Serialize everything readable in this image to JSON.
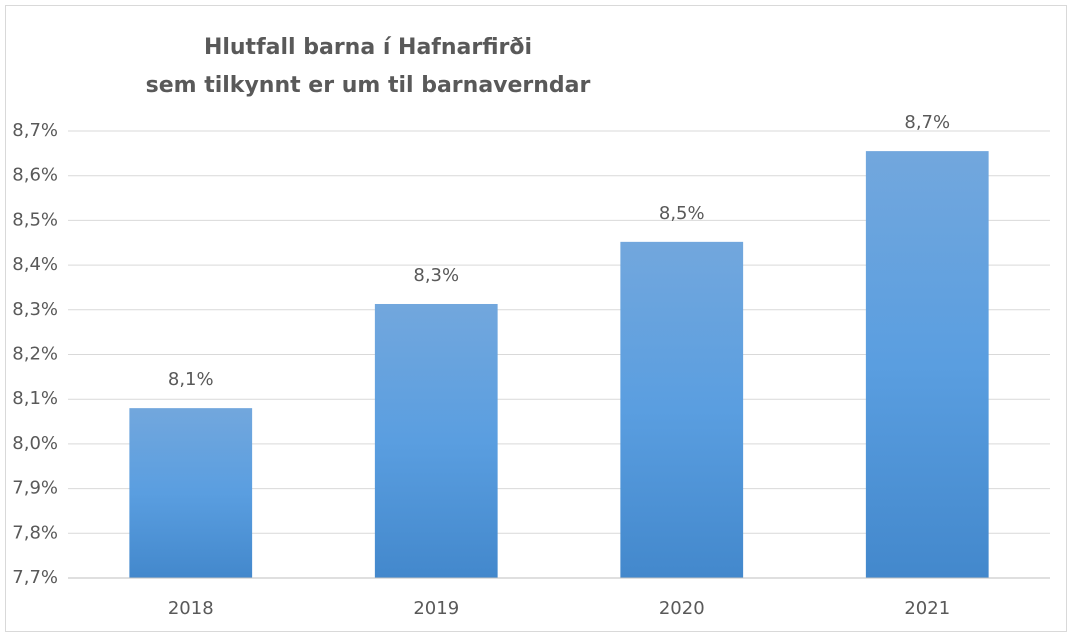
{
  "chart_data": {
    "type": "bar",
    "title": [
      "Hlutfall barna í Hafnarfirði",
      "sem tilkynnt er um til barnaverndar"
    ],
    "categories": [
      "2018",
      "2019",
      "2020",
      "2021"
    ],
    "values": [
      8.08,
      8.313,
      8.452,
      8.655
    ],
    "value_labels": [
      "8,1%",
      "8,3%",
      "8,5%",
      "8,7%"
    ],
    "color": "#5b9bd5",
    "ylim": [
      7.7,
      8.7
    ],
    "yticks": [
      {
        "value": 7.7,
        "label": "7,7%"
      },
      {
        "value": 7.8,
        "label": "7,8%"
      },
      {
        "value": 7.9,
        "label": "7,9%"
      },
      {
        "value": 8.0,
        "label": "8,0%"
      },
      {
        "value": 8.1,
        "label": "8,1%"
      },
      {
        "value": 8.2,
        "label": "8,2%"
      },
      {
        "value": 8.3,
        "label": "8,3%"
      },
      {
        "value": 8.4,
        "label": "8,4%"
      },
      {
        "value": 8.5,
        "label": "8,5%"
      },
      {
        "value": 8.6,
        "label": "8,6%"
      },
      {
        "value": 8.7,
        "label": "8,7%"
      }
    ],
    "grid": true
  }
}
